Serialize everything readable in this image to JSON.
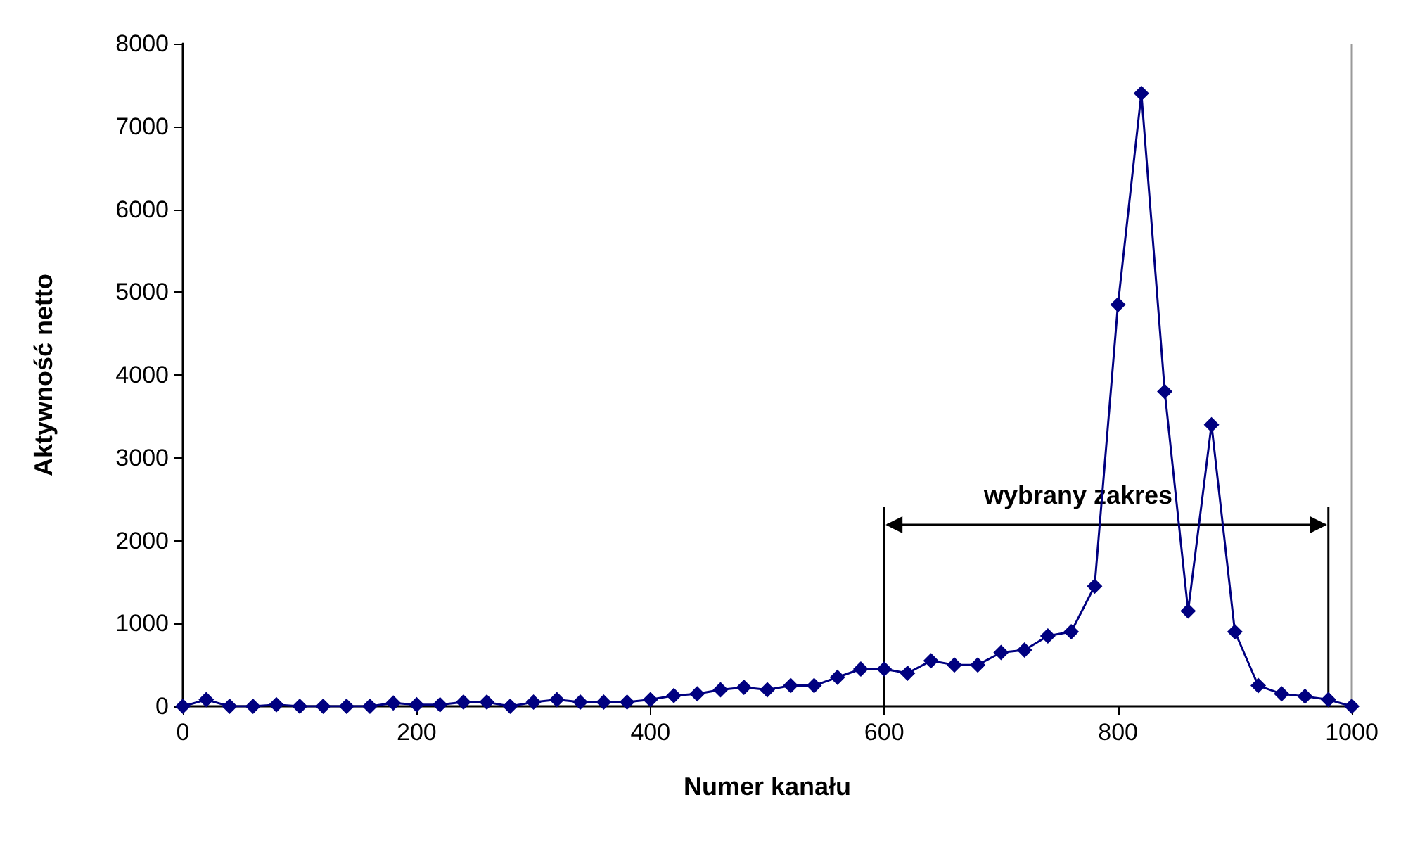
{
  "chart_data": {
    "type": "line",
    "xlabel": "Numer kanału",
    "ylabel": "Aktywność netto",
    "x": [
      0,
      20,
      40,
      60,
      80,
      100,
      120,
      140,
      160,
      180,
      200,
      220,
      240,
      260,
      280,
      300,
      320,
      340,
      360,
      380,
      400,
      420,
      440,
      460,
      480,
      500,
      520,
      540,
      560,
      580,
      600,
      620,
      640,
      660,
      680,
      700,
      720,
      740,
      760,
      780,
      800,
      820,
      840,
      860,
      880,
      900,
      920,
      940,
      960,
      980,
      1000
    ],
    "series": [
      {
        "color": "#000080",
        "values": [
          0,
          80,
          0,
          0,
          20,
          0,
          0,
          0,
          0,
          40,
          20,
          20,
          50,
          50,
          0,
          50,
          80,
          50,
          50,
          50,
          80,
          130,
          150,
          200,
          230,
          200,
          250,
          250,
          350,
          450,
          450,
          400,
          550,
          500,
          500,
          650,
          680,
          850,
          900,
          1450,
          4850,
          7400,
          3800,
          1150,
          3400,
          900,
          250,
          150,
          120,
          80,
          0
        ]
      }
    ],
    "xlim": [
      0,
      1000
    ],
    "xticks": [
      0,
      200,
      400,
      600,
      800,
      1000
    ],
    "ylim": [
      0,
      8000
    ],
    "yticks": [
      0,
      1000,
      2000,
      3000,
      4000,
      5000,
      6000,
      7000,
      8000
    ],
    "grid": false,
    "marker": "diamond",
    "line_style": "solid",
    "ref_lines": [
      {
        "axis": "x",
        "value": 600,
        "color": "#000000"
      },
      {
        "axis": "x",
        "value": 980,
        "color": "#000000"
      }
    ],
    "annotations": [
      "wybrany zakres"
    ]
  }
}
